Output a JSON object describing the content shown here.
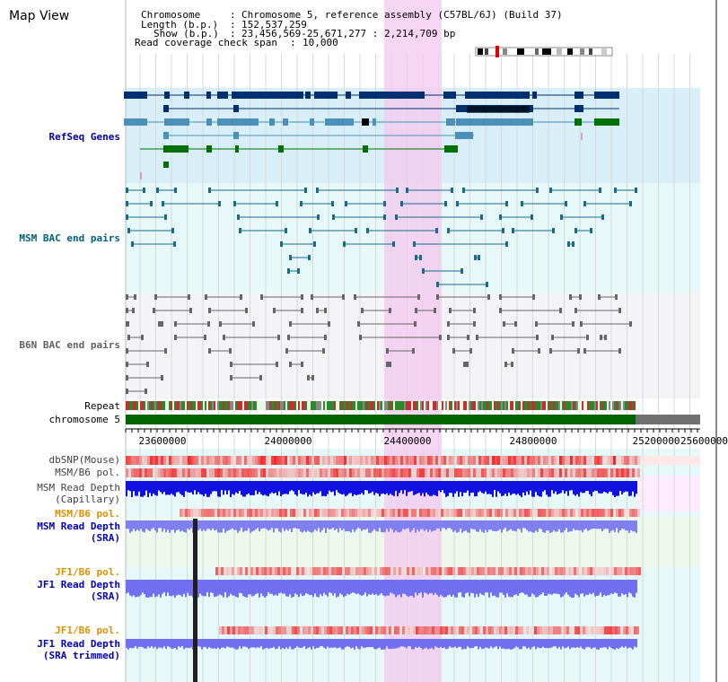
{
  "header": {
    "title": "Map View",
    "chromosome_key": "Chromosome",
    "chromosome_value": "Chromosome 5, reference assembly (C57BL/6J) (Build 37)",
    "length_key": "Length (b.p.)",
    "length_value": "152,537,259",
    "show_key": "Show (b.p.)",
    "show_value": "23,456,569-25,671,277 : 2,214,709 bp",
    "coverage_key": "Read coverage check span",
    "coverage_value": "10,000"
  },
  "tracks": {
    "refseq": "RefSeq Genes",
    "msm_bac": "MSM BAC end pairs",
    "b6n_bac": "B6N BAC end pairs",
    "repeat": "Repeat",
    "chromosome": "chromosome 5",
    "dbsnp": "dbSNP(Mouse)",
    "msm_pol": "MSM/B6 pol.",
    "msm_depth_cap_1": "MSM Read Depth",
    "msm_depth_cap_2": "(Capillary)",
    "msm_pol2": "MSM/B6 pol.",
    "msm_depth_sra_1": "MSM Read Depth",
    "msm_depth_sra_2": "(SRA)",
    "jf1_pol": "JF1/B6 pol.",
    "jf1_depth_sra_1": "JF1 Read Depth",
    "jf1_depth_sra_2": "(SRA)",
    "jf1_pol2": "JF1/B6 pol.",
    "jf1_depth_trim_1": "JF1 Read Depth",
    "jf1_depth_trim_2": "(SRA trimmed)"
  },
  "axis": {
    "ticks": [
      "23600000",
      "24000000",
      "24400000",
      "24800000",
      "25200000",
      "25600000"
    ]
  },
  "colors": {
    "refseq_label": "#0000a0",
    "msm_label": "#006080",
    "b6n_label": "#606060",
    "orange_label": "#e09000",
    "blue_label": "#0000c0",
    "highlight": "#f4c8f0",
    "chrom_green": "#006400"
  }
}
